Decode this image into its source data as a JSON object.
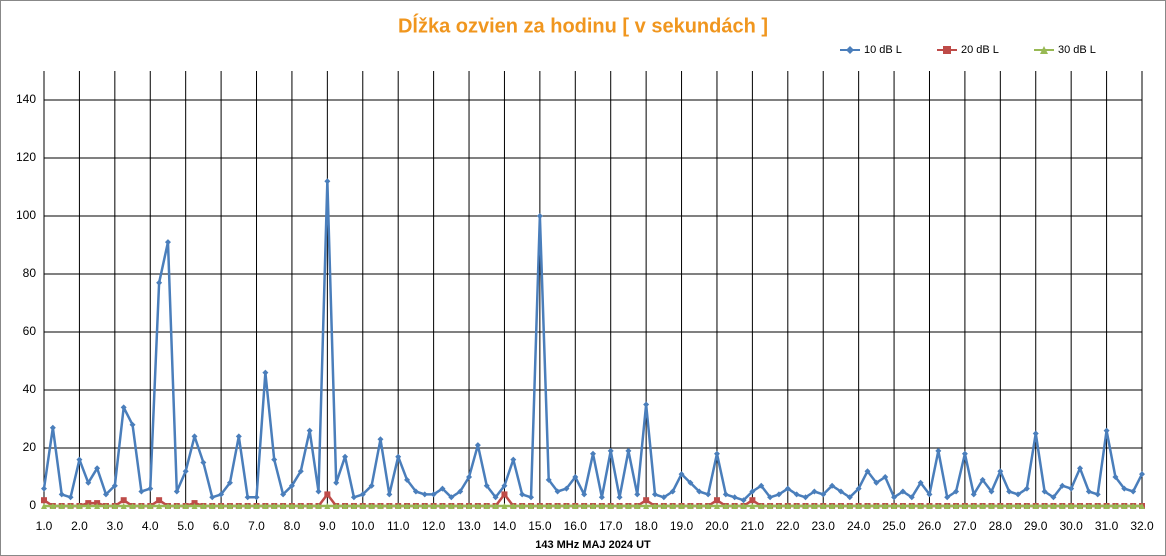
{
  "chart_data": {
    "type": "line",
    "title": "Dĺžka ozvien za hodinu [ v sekundách ]",
    "x_label": "143 MHz MAJ  2024  UT",
    "x": [
      1,
      1.25,
      1.5,
      1.75,
      2,
      2.25,
      2.5,
      2.75,
      3,
      3.25,
      3.5,
      3.75,
      4,
      4.25,
      4.5,
      4.75,
      5,
      5.25,
      5.5,
      5.75,
      6,
      6.25,
      6.5,
      6.75,
      7,
      7.25,
      7.5,
      7.75,
      8,
      8.25,
      8.5,
      8.75,
      9,
      9.25,
      9.5,
      9.75,
      10,
      10.25,
      10.5,
      10.75,
      11,
      11.25,
      11.5,
      11.75,
      12,
      12.25,
      12.5,
      12.75,
      13,
      13.25,
      13.5,
      13.75,
      14,
      14.25,
      14.5,
      14.75,
      15,
      15.25,
      15.5,
      15.75,
      16,
      16.25,
      16.5,
      16.75,
      17,
      17.25,
      17.5,
      17.75,
      18,
      18.25,
      18.5,
      18.75,
      19,
      19.25,
      19.5,
      19.75,
      20,
      20.25,
      20.5,
      20.75,
      21,
      21.25,
      21.5,
      21.75,
      22,
      22.25,
      22.5,
      22.75,
      23,
      23.25,
      23.5,
      23.75,
      24,
      24.25,
      24.5,
      24.75,
      25,
      25.25,
      25.5,
      25.75,
      26,
      26.25,
      26.5,
      26.75,
      27,
      27.25,
      27.5,
      27.75,
      28,
      28.25,
      28.5,
      28.75,
      29,
      29.25,
      29.5,
      29.75,
      30,
      30.25,
      30.5,
      30.75,
      31,
      31.25,
      31.5,
      31.75,
      32
    ],
    "series": [
      {
        "name": "10 dB L",
        "color": "#4a7ebb",
        "marker": "diamond",
        "values": [
          6,
          27,
          4,
          3,
          16,
          8,
          13,
          4,
          7,
          34,
          28,
          5,
          6,
          77,
          91,
          5,
          12,
          24,
          15,
          3,
          4,
          8,
          24,
          3,
          3,
          46,
          16,
          4,
          7,
          12,
          26,
          5,
          112,
          8,
          17,
          3,
          4,
          7,
          23,
          4,
          17,
          9,
          5,
          4,
          4,
          6,
          3,
          5,
          10,
          21,
          7,
          3,
          7,
          16,
          4,
          3,
          100,
          9,
          5,
          6,
          10,
          4,
          18,
          3,
          19,
          3,
          19,
          4,
          35,
          4,
          3,
          5,
          11,
          8,
          5,
          4,
          18,
          4,
          3,
          2,
          5,
          7,
          3,
          4,
          6,
          4,
          3,
          5,
          4,
          7,
          5,
          3,
          6,
          12,
          8,
          10,
          3,
          5,
          3,
          8,
          4,
          19,
          3,
          5,
          18,
          4,
          9,
          5,
          12,
          5,
          4,
          6,
          25,
          5,
          3,
          7,
          6,
          13,
          5,
          4,
          26,
          10,
          6,
          5,
          11
        ]
      },
      {
        "name": "20 dB L",
        "color": "#be4b48",
        "marker": "square",
        "values": [
          2,
          0,
          0,
          0,
          0,
          1,
          1,
          0,
          0,
          2,
          0,
          0,
          0,
          2,
          0,
          0,
          0,
          1,
          0,
          0,
          0,
          0,
          0,
          0,
          0,
          0,
          0,
          0,
          0,
          0,
          0,
          0,
          4,
          0,
          0,
          0,
          0,
          0,
          0,
          0,
          0,
          0,
          0,
          0,
          0,
          0,
          0,
          0,
          0,
          0,
          0,
          0,
          4,
          0,
          0,
          0,
          0,
          0,
          0,
          0,
          0,
          0,
          0,
          0,
          0,
          0,
          0,
          0,
          2,
          0,
          0,
          0,
          0,
          0,
          0,
          0,
          2,
          0,
          0,
          0,
          2,
          0,
          0,
          0,
          0,
          0,
          0,
          0,
          0,
          0,
          0,
          0,
          0,
          0,
          0,
          0,
          0,
          0,
          0,
          0,
          0,
          0,
          0,
          0,
          0,
          0,
          0,
          0,
          0,
          0,
          0,
          0,
          0,
          0,
          0,
          0,
          0,
          0,
          0,
          0,
          0,
          0,
          0,
          0,
          0
        ]
      },
      {
        "name": "30 dB L",
        "color": "#98b954",
        "marker": "triangle",
        "values": [
          0,
          0,
          0,
          0,
          0,
          0,
          0,
          0,
          0,
          0,
          0,
          0,
          0,
          0,
          0,
          0,
          0,
          0,
          0,
          0,
          0,
          0,
          0,
          0,
          0,
          0,
          0,
          0,
          0,
          0,
          0,
          0,
          0,
          0,
          0,
          0,
          0,
          0,
          0,
          0,
          0,
          0,
          0,
          0,
          0,
          0,
          0,
          0,
          0,
          0,
          0,
          0,
          0,
          0,
          0,
          0,
          0,
          0,
          0,
          0,
          0,
          0,
          0,
          0,
          0,
          0,
          0,
          0,
          0,
          0,
          0,
          0,
          0,
          0,
          0,
          0,
          0,
          0,
          0,
          0,
          0,
          0,
          0,
          0,
          0,
          0,
          0,
          0,
          0,
          0,
          0,
          0,
          0,
          0,
          0,
          0,
          0,
          0,
          0,
          0,
          0,
          0,
          0,
          0,
          0,
          0,
          0,
          0,
          0,
          0,
          0,
          0,
          0,
          0,
          0,
          0,
          0,
          0,
          0,
          0,
          0,
          0,
          0,
          0,
          0
        ]
      }
    ],
    "xlim": [
      1,
      32
    ],
    "ylim": [
      0,
      150
    ],
    "xticks": [
      {
        "value": 1,
        "label": "1.0"
      },
      {
        "value": 2,
        "label": "2.0"
      },
      {
        "value": 3,
        "label": "3.0"
      },
      {
        "value": 4,
        "label": "4.0"
      },
      {
        "value": 5,
        "label": "5.0"
      },
      {
        "value": 6,
        "label": "6.0"
      },
      {
        "value": 7,
        "label": "7.0"
      },
      {
        "value": 8,
        "label": "8.0"
      },
      {
        "value": 9,
        "label": "9.0"
      },
      {
        "value": 10,
        "label": "10.0"
      },
      {
        "value": 11,
        "label": "11.0"
      },
      {
        "value": 12,
        "label": "12.0"
      },
      {
        "value": 13,
        "label": "13.0"
      },
      {
        "value": 14,
        "label": "14.0"
      },
      {
        "value": 15,
        "label": "15.0"
      },
      {
        "value": 16,
        "label": "16.0"
      },
      {
        "value": 17,
        "label": "17.0"
      },
      {
        "value": 18,
        "label": "18.0"
      },
      {
        "value": 19,
        "label": "19.0"
      },
      {
        "value": 20,
        "label": "20.0"
      },
      {
        "value": 21,
        "label": "21.0"
      },
      {
        "value": 22,
        "label": "22.0"
      },
      {
        "value": 23,
        "label": "23.0"
      },
      {
        "value": 24,
        "label": "24.0"
      },
      {
        "value": 25,
        "label": "25.0"
      },
      {
        "value": 26,
        "label": "26.0"
      },
      {
        "value": 27,
        "label": "27.0"
      },
      {
        "value": 28,
        "label": "28.0"
      },
      {
        "value": 29,
        "label": "29.0"
      },
      {
        "value": 30,
        "label": "30.0"
      },
      {
        "value": 31,
        "label": "31.0"
      },
      {
        "value": 32,
        "label": "32.0"
      }
    ],
    "yticks": [
      0,
      20,
      40,
      60,
      80,
      100,
      120,
      140
    ],
    "grid": true,
    "legend": "top-right"
  }
}
